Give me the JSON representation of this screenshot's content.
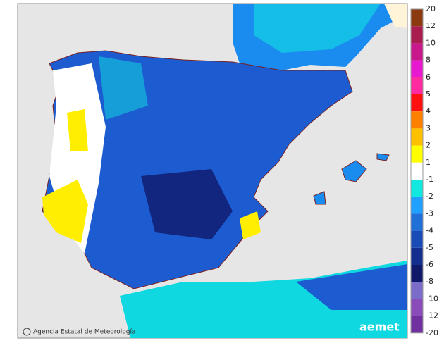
{
  "legend": {
    "labels": [
      "20",
      "12",
      "10",
      "8",
      "6",
      "5",
      "4",
      "3",
      "2",
      "1",
      "-1",
      "-2",
      "-3",
      "-4",
      "-5",
      "-6",
      "-8",
      "-10",
      "-12",
      "-20"
    ],
    "colors": [
      "#8b3a10",
      "#a81c50",
      "#c8188c",
      "#e818d0",
      "#ff2aa0",
      "#ff1010",
      "#ff8000",
      "#ffc000",
      "#ffff00",
      "#ffffff",
      "#10e8e0",
      "#20a0ff",
      "#2070d8",
      "#1a4cb8",
      "#142e90",
      "#10186a",
      "#7a6cc8",
      "#8a4cb8",
      "#7030a0"
    ]
  },
  "credit": "Agencia Estatal de Meteorología",
  "logo": "aemet"
}
